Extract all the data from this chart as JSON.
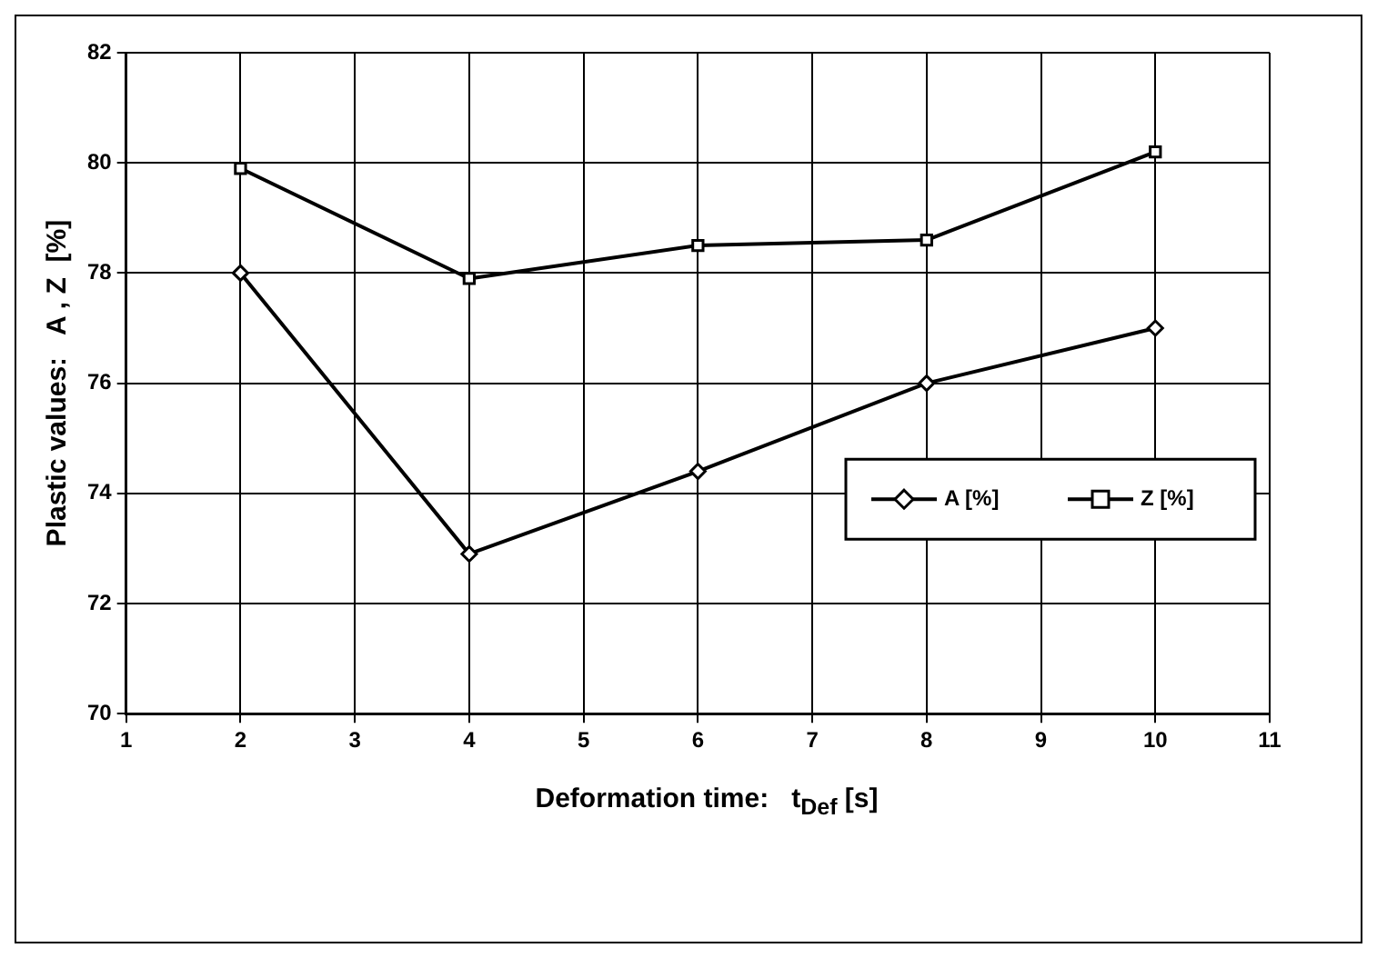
{
  "chart_data": {
    "type": "line",
    "xlabel": "Deformation time:   t$_{Def}$ [s]",
    "ylabel": "Plastic values:   A , Z  [%]",
    "x": [
      2,
      4,
      6,
      8,
      10
    ],
    "series": [
      {
        "name": "A [%]",
        "color": "#000000",
        "marker": "diamond",
        "values": [
          78,
          72.9,
          74.4,
          76,
          77
        ]
      },
      {
        "name": "Z [%]",
        "color": "#000000",
        "marker": "square",
        "values": [
          79.9,
          77.9,
          78.5,
          78.6,
          80.2
        ]
      }
    ],
    "xlim": [
      1,
      11
    ],
    "xticks": [
      1,
      2,
      3,
      4,
      5,
      6,
      7,
      8,
      9,
      10,
      11
    ],
    "ylim": [
      70,
      82
    ],
    "yticks": [
      70,
      72,
      74,
      76,
      78,
      80,
      82
    ],
    "grid": true,
    "legend": "right",
    "line_style": "solid"
  }
}
